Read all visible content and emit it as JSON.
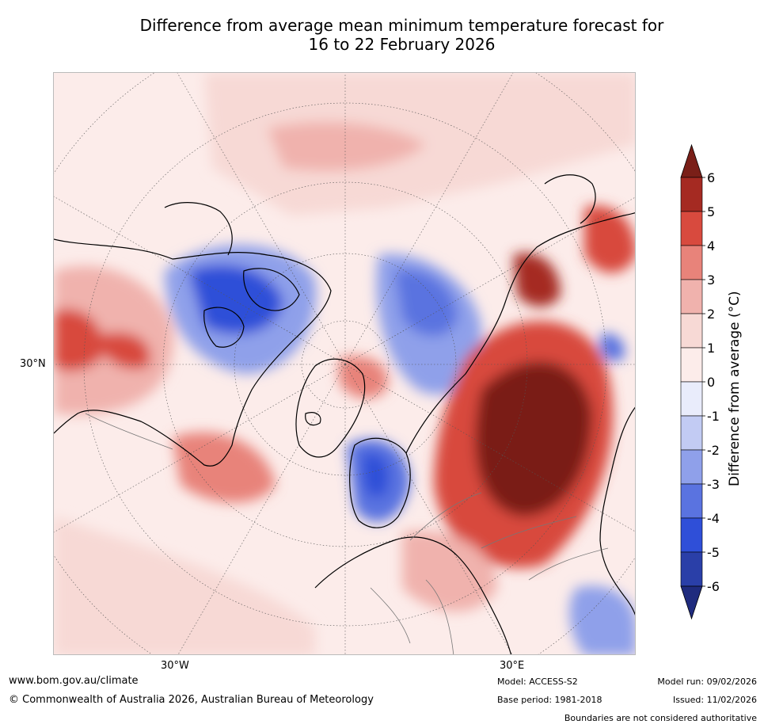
{
  "title_line1": "Difference from average mean minimum temperature forecast for",
  "title_line2": "16 to 22 February 2026",
  "map": {
    "projection": "north polar stereographic",
    "lat_label": "30°N",
    "lon_labels": [
      "30°W",
      "30°E"
    ]
  },
  "colorbar": {
    "label": "Difference from average (°C)",
    "ticks": [
      "6",
      "5",
      "4",
      "3",
      "2",
      "1",
      "0",
      "-1",
      "-2",
      "-3",
      "-4",
      "-5",
      "-6"
    ],
    "colors": [
      "#a52a22",
      "#d84a3e",
      "#e8837a",
      "#f0b2ad",
      "#f7d9d5",
      "#fcecea",
      "#e9ecfb",
      "#c2cbf3",
      "#8fa0ea",
      "#5a73e0",
      "#2f4fd8",
      "#2a3fa8"
    ],
    "over_color": "#7a1f18",
    "under_color": "#1f2b7e"
  },
  "footer": {
    "url": "www.bom.gov.au/climate",
    "copyright": "© Commonwealth of Australia 2026, Australian Bureau of Meteorology",
    "model": "Model: ACCESS-S2",
    "base_period": "Base period: 1981-2018",
    "model_run": "Model run: 09/02/2026",
    "issued": "Issued: 11/02/2026",
    "disclaimer": "Boundaries are not considered authoritative"
  }
}
